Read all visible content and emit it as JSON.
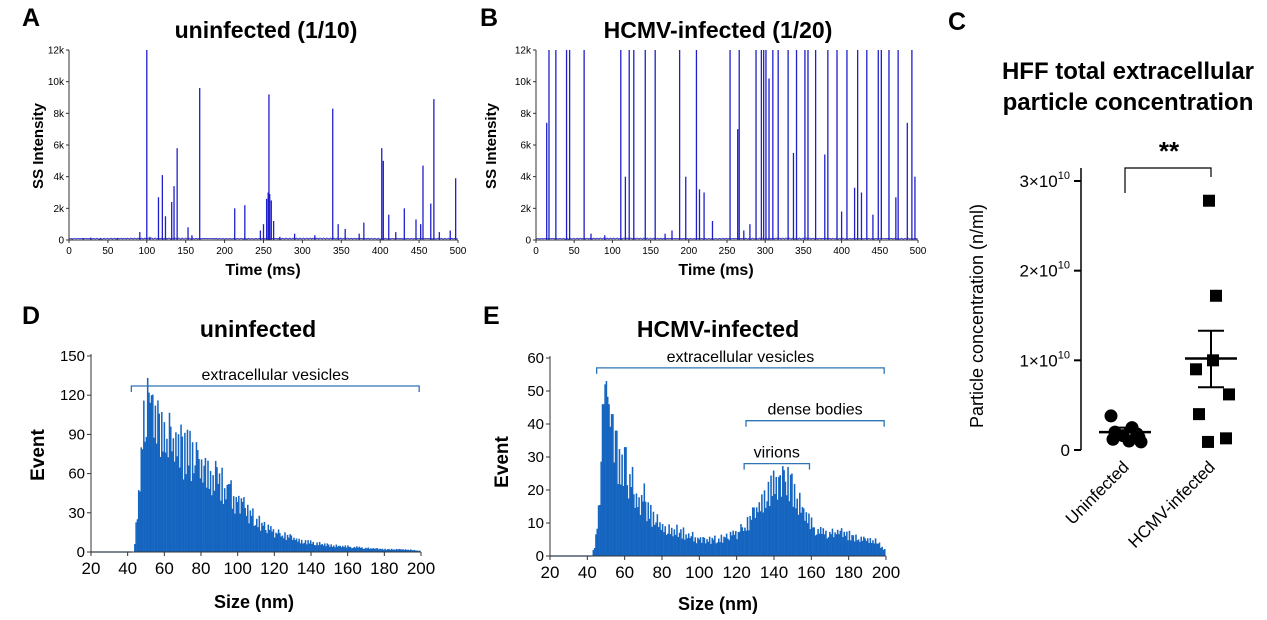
{
  "colors": {
    "trace": "#1f1fcc",
    "hist": "#1565c0",
    "bracket": "#2e75b6",
    "marker": "#000000"
  },
  "chart_data": [
    {
      "id": "A",
      "type": "line",
      "panel_label": "A",
      "title": "uninfected (1/10)",
      "xlabel": "Time (ms)",
      "ylabel": "SS Intensity",
      "xlim": [
        0,
        500
      ],
      "ylim": [
        0,
        12000
      ],
      "x_ticks": [
        0,
        50,
        100,
        150,
        200,
        250,
        300,
        350,
        400,
        450,
        500
      ],
      "x_tick_labels": [
        "0",
        "50",
        "100",
        "150",
        "200",
        "250",
        "300",
        "350",
        "400",
        "450",
        "500"
      ],
      "y_ticks": [
        0,
        2000,
        4000,
        6000,
        8000,
        10000,
        12000
      ],
      "y_tick_labels": [
        "0",
        "2k",
        "4k",
        "6k",
        "8k",
        "10k",
        "12k"
      ],
      "series": [
        {
          "name": "SS Intensity",
          "values": [
            [
              4,
              80
            ],
            [
              18,
              120
            ],
            [
              28,
              150
            ],
            [
              40,
              90
            ],
            [
              62,
              100
            ],
            [
              91,
              500
            ],
            [
              100,
              12000
            ],
            [
              104,
              200
            ],
            [
              115,
              2700
            ],
            [
              120,
              4100
            ],
            [
              124,
              1500
            ],
            [
              132,
              2400
            ],
            [
              135,
              3400
            ],
            [
              139,
              5800
            ],
            [
              153,
              800
            ],
            [
              158,
              300
            ],
            [
              168,
              9600
            ],
            [
              213,
              2000
            ],
            [
              226,
              2200
            ],
            [
              246,
              600
            ],
            [
              250,
              1000
            ],
            [
              254,
              2600
            ],
            [
              256,
              3000
            ],
            [
              257,
              9200
            ],
            [
              258,
              2900
            ],
            [
              260,
              2500
            ],
            [
              263,
              1200
            ],
            [
              271,
              200
            ],
            [
              290,
              400
            ],
            [
              316,
              300
            ],
            [
              339,
              8300
            ],
            [
              346,
              1000
            ],
            [
              355,
              700
            ],
            [
              373,
              400
            ],
            [
              379,
              1100
            ],
            [
              402,
              5800
            ],
            [
              404,
              5000
            ],
            [
              411,
              1600
            ],
            [
              420,
              500
            ],
            [
              431,
              2000
            ],
            [
              446,
              1300
            ],
            [
              452,
              1000
            ],
            [
              455,
              4700
            ],
            [
              465,
              2300
            ],
            [
              469,
              8900
            ],
            [
              476,
              500
            ],
            [
              490,
              600
            ],
            [
              497,
              3900
            ]
          ]
        }
      ]
    },
    {
      "id": "B",
      "type": "line",
      "panel_label": "B",
      "title": "HCMV-infected (1/20)",
      "xlabel": "Time (ms)",
      "ylabel": "SS Intensity",
      "xlim": [
        0,
        500
      ],
      "ylim": [
        0,
        12000
      ],
      "x_ticks": [
        0,
        50,
        100,
        150,
        200,
        250,
        300,
        350,
        400,
        450,
        500
      ],
      "x_tick_labels": [
        "0",
        "50",
        "100",
        "150",
        "200",
        "250",
        "300",
        "350",
        "400",
        "450",
        "500"
      ],
      "y_ticks": [
        0,
        2000,
        4000,
        6000,
        8000,
        10000,
        12000
      ],
      "y_tick_labels": [
        "0",
        "2k",
        "4k",
        "6k",
        "8k",
        "10k",
        "12k"
      ],
      "series": [
        {
          "name": "SS Intensity",
          "values": [
            [
              14,
              7400
            ],
            [
              17,
              12000
            ],
            [
              26,
              12000
            ],
            [
              40,
              12000
            ],
            [
              44,
              12000
            ],
            [
              63,
              12000
            ],
            [
              72,
              400
            ],
            [
              90,
              300
            ],
            [
              111,
              12000
            ],
            [
              117,
              4000
            ],
            [
              122,
              12000
            ],
            [
              128,
              12000
            ],
            [
              143,
              12000
            ],
            [
              156,
              12000
            ],
            [
              169,
              400
            ],
            [
              178,
              600
            ],
            [
              188,
              12000
            ],
            [
              196,
              4000
            ],
            [
              210,
              12000
            ],
            [
              214,
              3200
            ],
            [
              220,
              3000
            ],
            [
              231,
              1200
            ],
            [
              254,
              12000
            ],
            [
              264,
              7000
            ],
            [
              266,
              12000
            ],
            [
              272,
              600
            ],
            [
              280,
              1000
            ],
            [
              288,
              12000
            ],
            [
              295,
              12000
            ],
            [
              298,
              12000
            ],
            [
              301,
              12000
            ],
            [
              305,
              10200
            ],
            [
              310,
              12000
            ],
            [
              317,
              12000
            ],
            [
              330,
              12000
            ],
            [
              337,
              5500
            ],
            [
              341,
              12000
            ],
            [
              352,
              12000
            ],
            [
              356,
              12000
            ],
            [
              366,
              12000
            ],
            [
              378,
              5400
            ],
            [
              382,
              12000
            ],
            [
              394,
              12000
            ],
            [
              400,
              1800
            ],
            [
              407,
              12000
            ],
            [
              417,
              3300
            ],
            [
              421,
              12000
            ],
            [
              426,
              3000
            ],
            [
              433,
              12000
            ],
            [
              441,
              1600
            ],
            [
              448,
              12000
            ],
            [
              452,
              12000
            ],
            [
              462,
              12000
            ],
            [
              471,
              2700
            ],
            [
              474,
              12000
            ],
            [
              486,
              7400
            ],
            [
              492,
              12000
            ],
            [
              496,
              4000
            ]
          ]
        }
      ]
    },
    {
      "id": "C",
      "type": "scatter",
      "panel_label": "C",
      "title_lines": [
        "HFF total extracellular",
        "particle concentration"
      ],
      "ylabel": "Particle concentration  (n/ml)",
      "ylim": [
        0,
        31000000000.0
      ],
      "y_ticks": [
        0,
        10000000000.0,
        20000000000.0,
        30000000000.0
      ],
      "y_tick_base": [
        "0",
        "1×10",
        "2×10",
        "3×10"
      ],
      "y_tick_exp": [
        "",
        "10",
        "10",
        "10"
      ],
      "categories": [
        "Uninfected",
        "HCMV-infected"
      ],
      "significance": "**",
      "series": [
        {
          "name": "Uninfected",
          "marker": "circle",
          "values": [
            3800000000.0,
            2500000000.0,
            2000000000.0,
            1800000000.0,
            1600000000.0,
            1400000000.0,
            1200000000.0,
            1000000000.0,
            900000000.0
          ],
          "mean": 2000000000.0,
          "sem_low": 1600000000.0,
          "sem_high": 2500000000.0
        },
        {
          "name": "HCMV-infected",
          "marker": "square",
          "values": [
            27800000000.0,
            17200000000.0,
            10000000000.0,
            9000000000.0,
            6200000000.0,
            1300000000.0,
            900000000.0,
            4000000000.0
          ],
          "mean": 10200000000.0,
          "sem_low": 7000000000.0,
          "sem_high": 13300000000.0
        }
      ]
    },
    {
      "id": "D",
      "type": "bar",
      "panel_label": "D",
      "title": "uninfected",
      "xlabel": "Size (nm)",
      "ylabel": "Event",
      "xlim": [
        20,
        200
      ],
      "ylim": [
        0,
        150
      ],
      "x_ticks": [
        20,
        40,
        60,
        80,
        100,
        120,
        140,
        160,
        180,
        200
      ],
      "y_ticks": [
        0,
        30,
        60,
        90,
        120,
        150
      ],
      "brackets": [
        {
          "label": "extracellular vesicles",
          "from": 42,
          "to": 199
        }
      ],
      "profile": [
        [
          40,
          0
        ],
        [
          43,
          0
        ],
        [
          45,
          30
        ],
        [
          47,
          70
        ],
        [
          49,
          100
        ],
        [
          51,
          112
        ],
        [
          53,
          110
        ],
        [
          55,
          100
        ],
        [
          57,
          92
        ],
        [
          60,
          85
        ],
        [
          63,
          84
        ],
        [
          66,
          80
        ],
        [
          70,
          76
        ],
        [
          75,
          72
        ],
        [
          80,
          66
        ],
        [
          85,
          58
        ],
        [
          90,
          52
        ],
        [
          95,
          45
        ],
        [
          100,
          38
        ],
        [
          105,
          31
        ],
        [
          110,
          24
        ],
        [
          115,
          19
        ],
        [
          120,
          15
        ],
        [
          125,
          12
        ],
        [
          130,
          10
        ],
        [
          135,
          8
        ],
        [
          140,
          7
        ],
        [
          150,
          5
        ],
        [
          160,
          4
        ],
        [
          170,
          3
        ],
        [
          180,
          2
        ],
        [
          190,
          2
        ],
        [
          199,
          1
        ]
      ],
      "peaks": [
        [
          51,
          122
        ],
        [
          53,
          120
        ],
        [
          56,
          116
        ],
        [
          58,
          99
        ],
        [
          63,
          96
        ],
        [
          66,
          82
        ],
        [
          72,
          82
        ],
        [
          78,
          78
        ],
        [
          82,
          72
        ],
        [
          88,
          65
        ],
        [
          95,
          52
        ],
        [
          103,
          42
        ]
      ]
    },
    {
      "id": "E",
      "type": "bar",
      "panel_label": "E",
      "title": "HCMV-infected",
      "xlabel": "Size (nm)",
      "ylabel": "Event",
      "xlim": [
        20,
        200
      ],
      "ylim": [
        0,
        60
      ],
      "x_ticks": [
        20,
        40,
        60,
        80,
        100,
        120,
        140,
        160,
        180,
        200
      ],
      "y_ticks": [
        0,
        10,
        20,
        30,
        40,
        50,
        60
      ],
      "brackets": [
        {
          "label": "extracellular vesicles",
          "from": 45,
          "to": 199,
          "level": 57
        },
        {
          "label": "dense bodies",
          "from": 125,
          "to": 199,
          "level": 41
        },
        {
          "label": "virions",
          "from": 124,
          "to": 159,
          "level": 28
        }
      ],
      "profile": [
        [
          40,
          0
        ],
        [
          42,
          0
        ],
        [
          44,
          4
        ],
        [
          46,
          16
        ],
        [
          48,
          34
        ],
        [
          50,
          40
        ],
        [
          52,
          38
        ],
        [
          54,
          34
        ],
        [
          56,
          30
        ],
        [
          58,
          26
        ],
        [
          60,
          22
        ],
        [
          64,
          18
        ],
        [
          68,
          15
        ],
        [
          72,
          13
        ],
        [
          76,
          11
        ],
        [
          80,
          9
        ],
        [
          85,
          8
        ],
        [
          90,
          7
        ],
        [
          95,
          6
        ],
        [
          100,
          5
        ],
        [
          105,
          5
        ],
        [
          110,
          5
        ],
        [
          115,
          6
        ],
        [
          120,
          7
        ],
        [
          125,
          9
        ],
        [
          130,
          13
        ],
        [
          135,
          18
        ],
        [
          140,
          21
        ],
        [
          145,
          22
        ],
        [
          150,
          19
        ],
        [
          155,
          14
        ],
        [
          160,
          9
        ],
        [
          165,
          7
        ],
        [
          170,
          7
        ],
        [
          175,
          7
        ],
        [
          180,
          6
        ],
        [
          185,
          5
        ],
        [
          190,
          5
        ],
        [
          195,
          4
        ],
        [
          199,
          2
        ]
      ],
      "peaks": [
        [
          48,
          46
        ],
        [
          49,
          52
        ],
        [
          50,
          53
        ],
        [
          51,
          46
        ],
        [
          53,
          43
        ],
        [
          55,
          38
        ],
        [
          60,
          33
        ],
        [
          64,
          27
        ],
        [
          70,
          22
        ],
        [
          142,
          24
        ],
        [
          145,
          26
        ],
        [
          147,
          27
        ],
        [
          149,
          25
        ]
      ]
    }
  ]
}
